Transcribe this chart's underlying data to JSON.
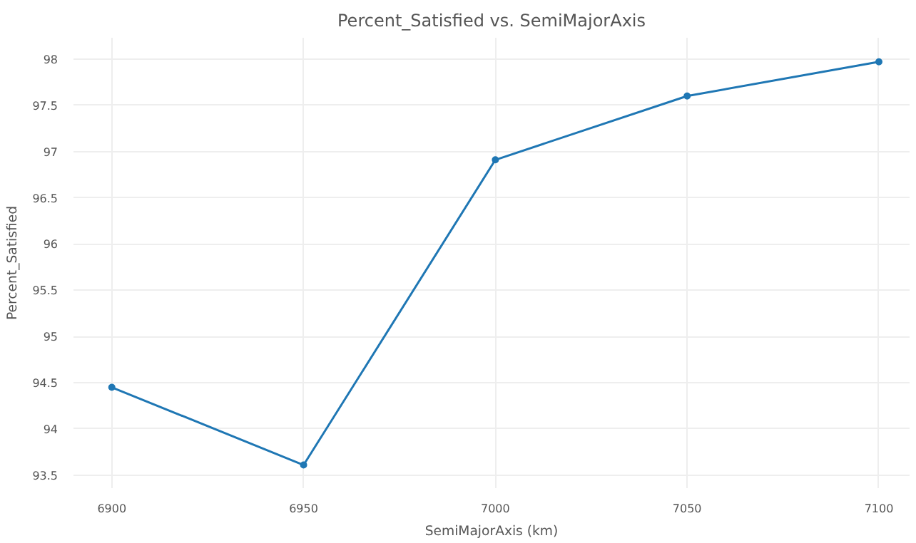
{
  "chart_data": {
    "type": "line",
    "title": "Percent_Satisfied vs. SemiMajorAxis",
    "xlabel": "SemiMajorAxis (km)",
    "ylabel": "Percent_Satisfied",
    "x": [
      6900,
      6950,
      7000,
      7050,
      7100
    ],
    "series": [
      {
        "color": "#1f77b4",
        "values": [
          94.45,
          93.61,
          96.91,
          97.6,
          97.97
        ]
      }
    ],
    "xlim": [
      6890,
      7108
    ],
    "ylim": [
      93.36,
      98.23
    ],
    "xticks": [
      6900,
      6950,
      7000,
      7050,
      7100
    ],
    "yticks": [
      93.5,
      94,
      94.5,
      95,
      95.5,
      96,
      96.5,
      97,
      97.5,
      98
    ],
    "grid": true,
    "marker": "circle",
    "line_style": "solid"
  }
}
